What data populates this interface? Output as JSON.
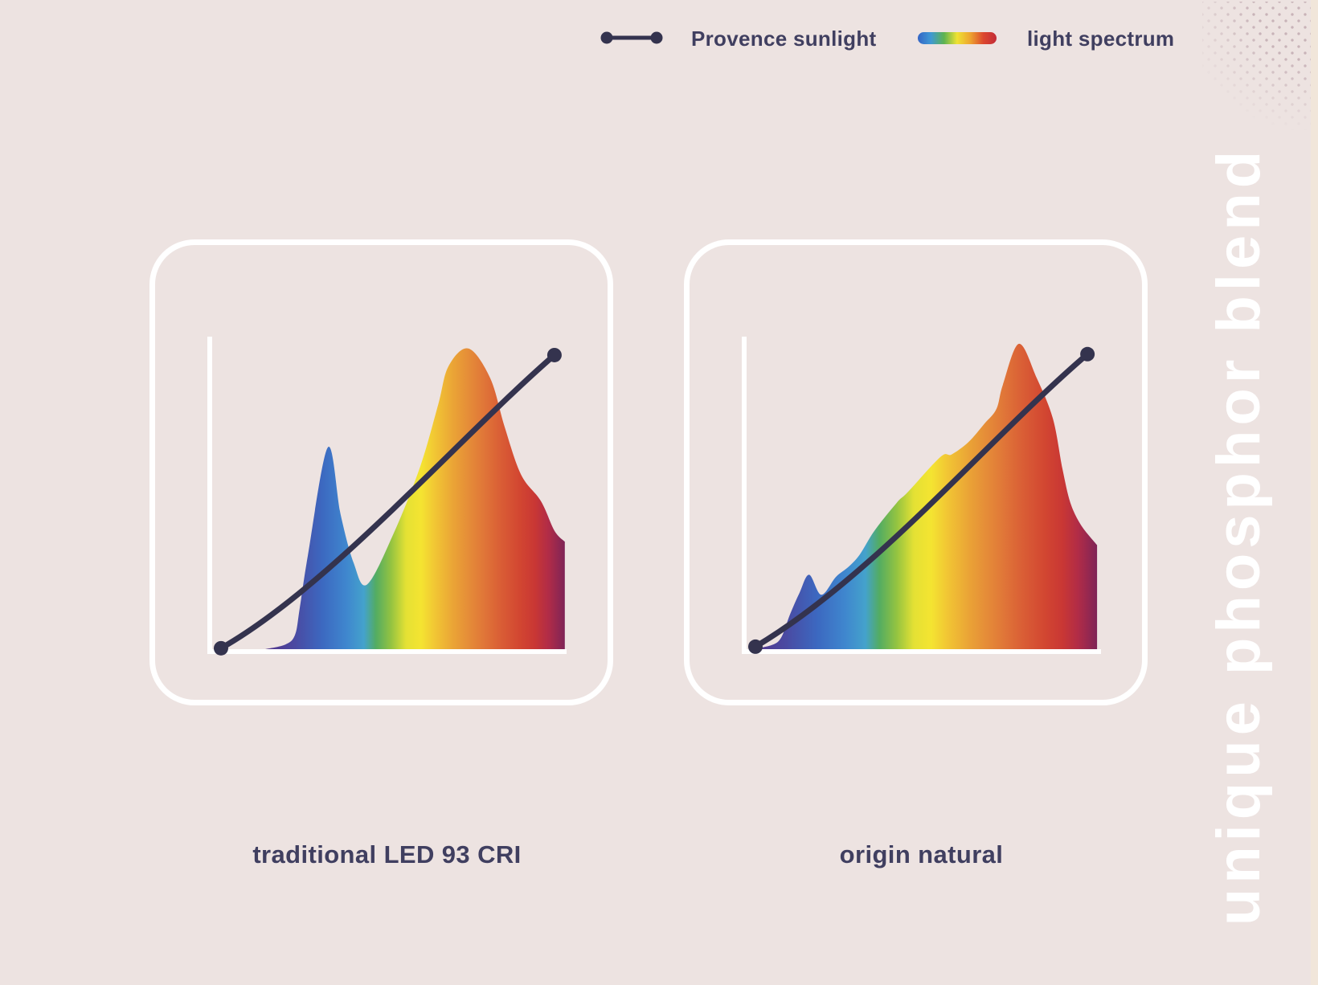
{
  "legend": {
    "sunlight_label": "Provence sunlight",
    "spectrum_label": "light spectrum"
  },
  "banner": {
    "text": "unique phosphor blend"
  },
  "colors": {
    "background": "#EDE3E1",
    "card_border": "#FFFFFF",
    "axis": "#FFFFFF",
    "sunlight_line": "#34334E",
    "text": "#403F60",
    "banner_text": "#FFFFFF",
    "page_edge_strip": "#F1E6DA",
    "corner_dots": "#C4AEB4",
    "spectrum_gradient": [
      {
        "o": 0.0,
        "c": "#53338A"
      },
      {
        "o": 0.1,
        "c": "#4A4AA2"
      },
      {
        "o": 0.19,
        "c": "#3C68C0"
      },
      {
        "o": 0.27,
        "c": "#3F86CE"
      },
      {
        "o": 0.33,
        "c": "#44A2CC"
      },
      {
        "o": 0.37,
        "c": "#53AC62"
      },
      {
        "o": 0.42,
        "c": "#93C341"
      },
      {
        "o": 0.47,
        "c": "#E4E134"
      },
      {
        "o": 0.52,
        "c": "#F4E431"
      },
      {
        "o": 0.57,
        "c": "#F1C434"
      },
      {
        "o": 0.63,
        "c": "#EAA336"
      },
      {
        "o": 0.68,
        "c": "#E58C38"
      },
      {
        "o": 0.73,
        "c": "#E07638"
      },
      {
        "o": 0.79,
        "c": "#D95C35"
      },
      {
        "o": 0.85,
        "c": "#D24631"
      },
      {
        "o": 0.9,
        "c": "#C93734"
      },
      {
        "o": 0.945,
        "c": "#B12C47"
      },
      {
        "o": 1.0,
        "c": "#7E2457"
      }
    ],
    "legend_pill_gradient": [
      "#3465C6",
      "#3F99D4",
      "#5DB351",
      "#EFE233",
      "#EDA42F",
      "#DC472E",
      "#C22B38"
    ]
  },
  "chart_data": [
    {
      "id": "traditional_led_93_cri",
      "type": "area",
      "title": "traditional LED 93 CRI",
      "xlabel": "",
      "ylabel": "",
      "axes_note": "no ticks or numeric labels shown; x is implied wavelength (~380-780 nm), y is relative intensity (normalized 0-1)",
      "grid": false,
      "legend_position": "top-right of page, shared",
      "series": [
        {
          "name": "light spectrum",
          "style": "area filled with horizontal rainbow gradient",
          "points_normalized": [
            [
              0.155,
              0.0
            ],
            [
              0.212,
              0.015
            ],
            [
              0.239,
              0.046
            ],
            [
              0.252,
              0.13
            ],
            [
              0.275,
              0.3
            ],
            [
              0.331,
              0.646
            ],
            [
              0.367,
              0.43
            ],
            [
              0.403,
              0.277
            ],
            [
              0.441,
              0.207
            ],
            [
              0.516,
              0.372
            ],
            [
              0.59,
              0.585
            ],
            [
              0.64,
              0.782
            ],
            [
              0.669,
              0.905
            ],
            [
              0.725,
              0.962
            ],
            [
              0.786,
              0.867
            ],
            [
              0.826,
              0.713
            ],
            [
              0.872,
              0.559
            ],
            [
              0.928,
              0.474
            ],
            [
              0.966,
              0.379
            ],
            [
              0.995,
              0.344
            ]
          ],
          "features": "narrow blue LED peak at x~0.33 (h~0.65), deep valley at x~0.44, broad phosphor peak at x~0.73 (h~0.96), vertical cut-off at right edge"
        },
        {
          "name": "Provence sunlight",
          "style": "smooth dark line with round end dots",
          "curve_normalized": {
            "start": [
              0.0315,
              0.003
            ],
            "c1": [
              0.336,
              0.2
            ],
            "c2": [
              0.696,
              0.674
            ],
            "end": [
              0.966,
              0.941
            ]
          }
        }
      ]
    },
    {
      "id": "origin_natural",
      "type": "area",
      "title": "origin natural",
      "xlabel": "",
      "ylabel": "",
      "axes_note": "no ticks or numeric labels shown; x is implied wavelength (~380-780 nm), y is relative intensity (normalized 0-1)",
      "grid": false,
      "legend_position": "top-right of page, shared",
      "series": [
        {
          "name": "light spectrum",
          "style": "area filled with horizontal rainbow gradient",
          "points_normalized": [
            [
              0.02,
              0.0
            ],
            [
              0.077,
              0.013
            ],
            [
              0.104,
              0.038
            ],
            [
              0.128,
              0.11
            ],
            [
              0.155,
              0.18
            ],
            [
              0.182,
              0.238
            ],
            [
              0.216,
              0.174
            ],
            [
              0.257,
              0.231
            ],
            [
              0.293,
              0.264
            ],
            [
              0.324,
              0.303
            ],
            [
              0.365,
              0.379
            ],
            [
              0.428,
              0.469
            ],
            [
              0.459,
              0.503
            ],
            [
              0.55,
              0.615
            ],
            [
              0.581,
              0.623
            ],
            [
              0.628,
              0.662
            ],
            [
              0.673,
              0.721
            ],
            [
              0.707,
              0.769
            ],
            [
              0.725,
              0.846
            ],
            [
              0.77,
              0.977
            ],
            [
              0.82,
              0.867
            ],
            [
              0.865,
              0.738
            ],
            [
              0.892,
              0.577
            ],
            [
              0.914,
              0.469
            ],
            [
              0.944,
              0.397
            ],
            [
              0.989,
              0.333
            ]
          ],
          "features": "small violet bump at x~0.18, steady bumpy rise through blue-green-yellow, tall orange-red peak at x~0.77 (h~0.98), vertical cut-off at right edge"
        },
        {
          "name": "Provence sunlight",
          "style": "smooth dark line with round end dots",
          "curve_normalized": {
            "start": [
              0.0315,
              0.008
            ],
            "c1": [
              0.369,
              0.238
            ],
            "c2": [
              0.685,
              0.674
            ],
            "end": [
              0.962,
              0.944
            ]
          }
        }
      ]
    }
  ]
}
